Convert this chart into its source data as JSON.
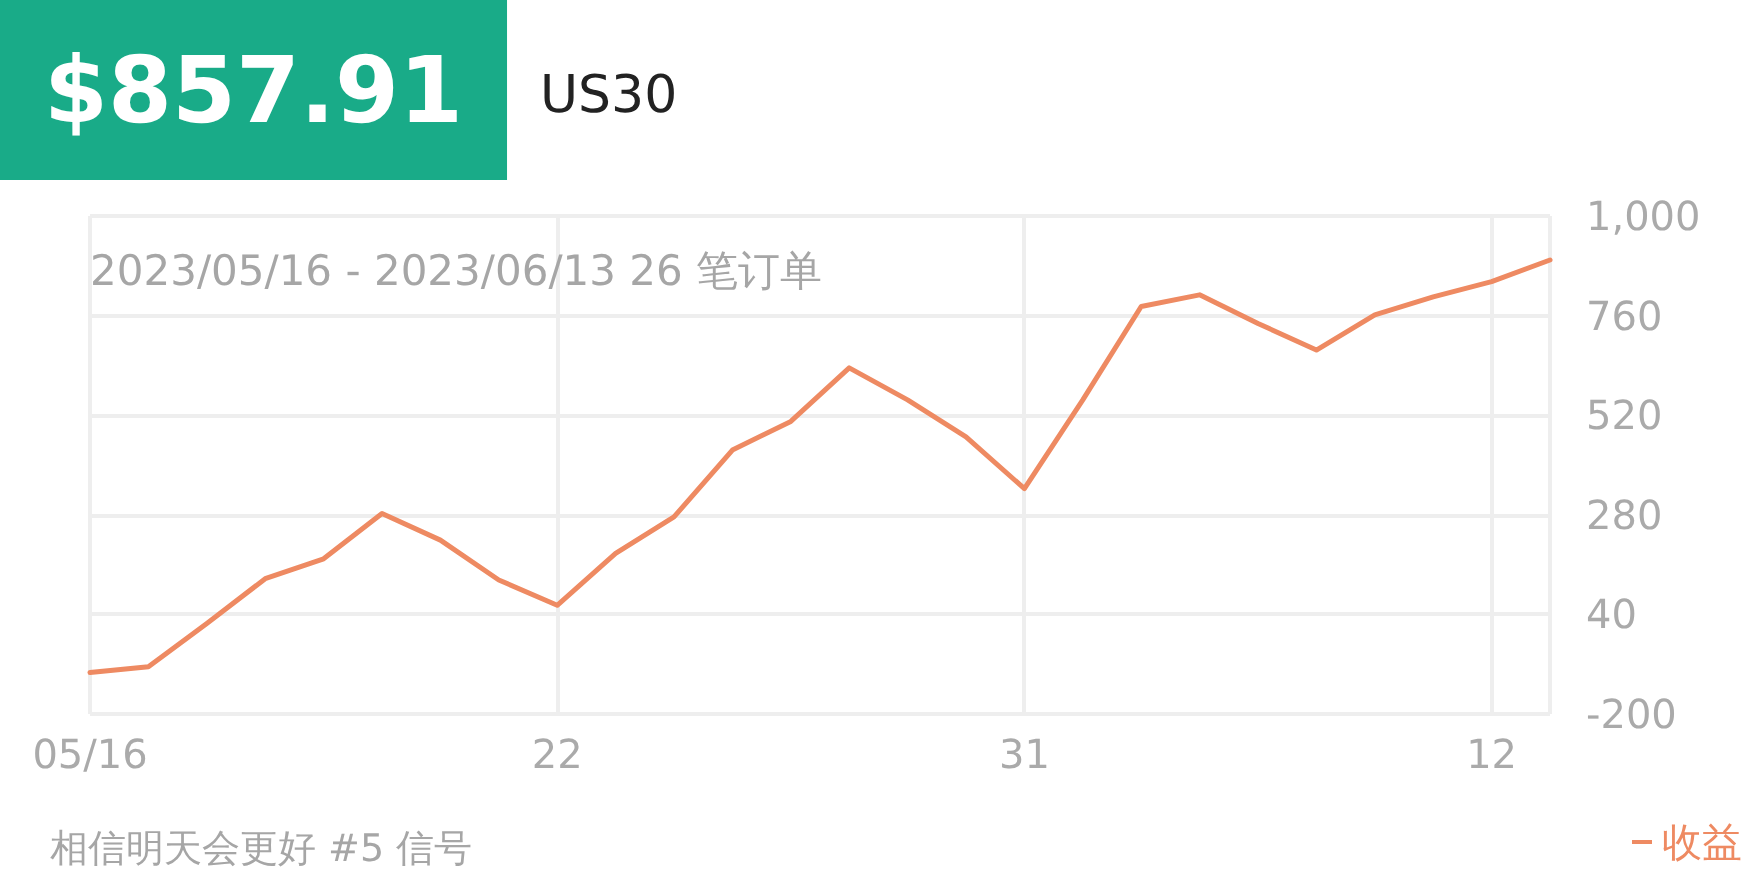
{
  "chart_data": {
    "type": "line",
    "title": "$857.91",
    "subtitle": "US30",
    "annotations": [
      "2023/05/16 - 2023/06/13 26 笔订单",
      "相信明天会更好 #5 信号"
    ],
    "categories": [
      "05/16",
      null,
      null,
      null,
      null,
      null,
      null,
      null,
      "22",
      null,
      null,
      null,
      null,
      null,
      null,
      null,
      "31",
      null,
      null,
      null,
      null,
      null,
      null,
      null,
      "12",
      null
    ],
    "series": [
      {
        "name": "收益",
        "color": "#ee8a62",
        "values": [
          -100,
          -86,
          18,
          126,
          174,
          283,
          219,
          123,
          62,
          187,
          275,
          436,
          505,
          634,
          557,
          468,
          343,
          557,
          782,
          810,
          741,
          677,
          762,
          805,
          842,
          894
        ]
      }
    ],
    "ylim": [
      -200,
      1000
    ],
    "yticks": [
      -200,
      40,
      280,
      520,
      760,
      {
        "value": 1000,
        "label": "1,000"
      }
    ],
    "grid": true,
    "legend": "bottom right",
    "marker": "none",
    "line_style": "solid"
  }
}
